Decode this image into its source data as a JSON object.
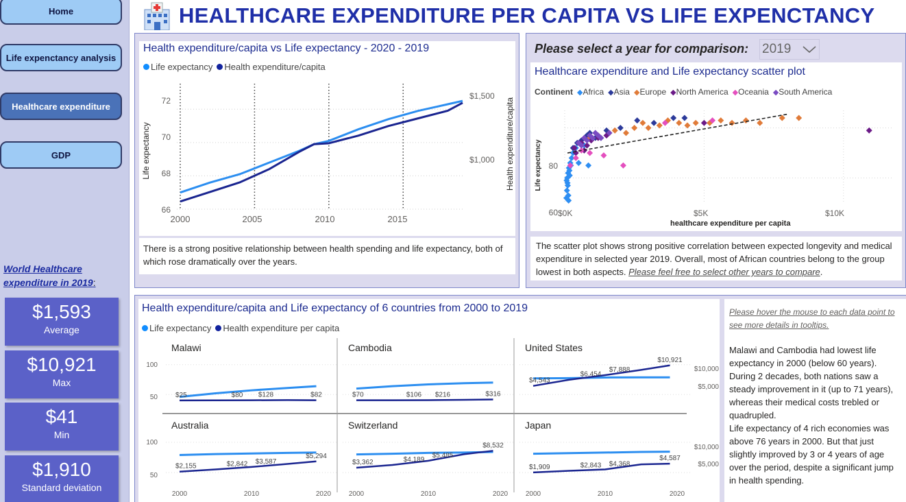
{
  "app_title": "HEALTHCARE EXPENDITURE PER CAPITA VS LIFE EXPENCTANCY",
  "colors": {
    "light_blue": "#118dff",
    "light_line": "#2c8ef0",
    "dark_line": "#12239e",
    "kpi_bg": "#5b61c8",
    "nav_active": "#4a72b8",
    "nav_bg": "#9ecbf5"
  },
  "nav": {
    "home": "Home",
    "life": "Life expenctancy analysis",
    "health": "Healthcare expenditure",
    "gdp": "GDP"
  },
  "world": {
    "title": "World Healthcare expenditure in 2019",
    "colon": ":"
  },
  "kpis": [
    {
      "value": "$1,593",
      "label": "Average"
    },
    {
      "value": "$10,921",
      "label": "Max"
    },
    {
      "value": "$41",
      "label": "Min"
    },
    {
      "value": "$1,910",
      "label": "Standard deviation"
    }
  ],
  "line_visual": {
    "title": "Health expenditure/capita vs Life expectancy - 2020 - 2019",
    "legend": [
      "Life expectancy",
      "Health expenditure/capita"
    ],
    "ylabel_left": "Life expectancy",
    "ylabel_right": "Health expenditure/capita",
    "y_ticks_left": [
      "72",
      "70",
      "68",
      "66"
    ],
    "y_ticks_right": [
      "$1,500",
      "$1,000"
    ],
    "x_ticks": [
      "2000",
      "2005",
      "2010",
      "2015"
    ],
    "note": "There is a strong positive relationship between health spending and life expectancy, both of which rose dramatically over the years."
  },
  "select": {
    "label": "Please select a year for comparison:",
    "value": "2019"
  },
  "scatter_visual": {
    "title": "Healthcare expenditure and Life expectancy scatter plot",
    "legend_label": "Continent",
    "legend": [
      {
        "name": "Africa",
        "color": "#2e8ef2"
      },
      {
        "name": "Asia",
        "color": "#2c3a9a"
      },
      {
        "name": "Europe",
        "color": "#e07b39"
      },
      {
        "name": "North America",
        "color": "#6b1a87"
      },
      {
        "name": "Oceania",
        "color": "#e44fbe"
      },
      {
        "name": "South America",
        "color": "#7a4bc2"
      }
    ],
    "ylabel": "Life expectancy",
    "xlabel": "healthcare expenditure per capita",
    "y_ticks": [
      "80",
      "60"
    ],
    "x_ticks": [
      "$0K",
      "$5K",
      "$10K"
    ],
    "note_plain": "The scatter plot shows strong positive correlation between expected longevity and medical expenditure in selected year 2019. Overall, most of African countries belong to the group lowest in both aspects. ",
    "note_italic": "Please feel free to select other years to compare",
    "note_end": "."
  },
  "small_multiples": {
    "title": "Health expenditure/capita and Life expectancy of 6 countries from 2000 to 2019",
    "legend": [
      "Life expectancy",
      "Health expenditure per capita"
    ],
    "y_left": [
      "100",
      "50"
    ],
    "y_right": [
      "$10,000",
      "$5,000"
    ],
    "x_ticks": [
      "2000",
      "2010",
      "2020"
    ],
    "countries": [
      {
        "name": "Malawi",
        "labels": [
          "$25",
          "$80",
          "$128",
          "$82"
        ]
      },
      {
        "name": "Cambodia",
        "labels": [
          "$70",
          "$106",
          "$216",
          "$316"
        ]
      },
      {
        "name": "United States",
        "labels": [
          "$4,543",
          "$6,454",
          "$7,888",
          "$10,921"
        ]
      },
      {
        "name": "Australia",
        "labels": [
          "$2,155",
          "$2,842",
          "$3,587",
          "$5,294"
        ]
      },
      {
        "name": "Switzerland",
        "labels": [
          "$3,362",
          "$4,189",
          "$5,485",
          "$8,532"
        ]
      },
      {
        "name": "Japan",
        "labels": [
          "$1,909",
          "$2,843",
          "$4,368",
          "$4,587"
        ]
      }
    ]
  },
  "side_note": {
    "hover": "Please hover the mouse to each data point to see more details in tooltips.",
    "p1": "Malawi and Cambodia had lowest life expectancy in 2000 (below 60 years). During 2 decades, both nations saw a steady improvement in it (up to 71 years), whereas their medical costs trebled or quadrupled.",
    "p2": "Life expectancy of 4 rich economies was above 76 years in 2000. But that just slightly improved by 3 or 4 years of age over the period, despite a significant jump in health spending."
  },
  "chart_data": [
    {
      "type": "line",
      "title": "Health expenditure/capita vs Life expectancy - 2020 - 2019",
      "x": [
        2000,
        2002,
        2004,
        2006,
        2008,
        2009,
        2010,
        2012,
        2014,
        2016,
        2018,
        2019
      ],
      "series": [
        {
          "name": "Life expectancy",
          "axis": "left",
          "values": [
            67.0,
            67.6,
            68.1,
            68.8,
            69.5,
            69.9,
            70.1,
            70.8,
            71.4,
            71.9,
            72.3,
            72.5
          ]
        },
        {
          "name": "Health expenditure/capita",
          "axis": "right",
          "values": [
            560,
            660,
            760,
            900,
            1080,
            1160,
            1170,
            1250,
            1350,
            1430,
            1510,
            1593
          ]
        }
      ],
      "ylim_left": [
        66,
        73
      ],
      "ylim_right": [
        480,
        1700
      ],
      "xlim": [
        2000,
        2019
      ]
    },
    {
      "type": "scatter",
      "title": "Healthcare expenditure and Life expectancy scatter plot",
      "xlim": [
        0,
        11800
      ],
      "ylim": [
        50,
        87
      ],
      "trend": [
        [
          100,
          70
        ],
        [
          8000,
          85.5
        ]
      ],
      "series": [
        {
          "name": "Africa",
          "points": [
            [
              80,
              55
            ],
            [
              100,
              58
            ],
            [
              120,
              62
            ],
            [
              60,
              52
            ],
            [
              150,
              64
            ],
            [
              200,
              66
            ],
            [
              90,
              60
            ],
            [
              130,
              53
            ],
            [
              110,
              57
            ],
            [
              170,
              63
            ],
            [
              250,
              68
            ],
            [
              300,
              70
            ],
            [
              400,
              72
            ],
            [
              500,
              66
            ],
            [
              700,
              73
            ],
            [
              850,
              65
            ],
            [
              140,
              51
            ],
            [
              70,
              59
            ],
            [
              180,
              61
            ],
            [
              220,
              65
            ]
          ]
        },
        {
          "name": "Asia",
          "points": [
            [
              300,
              72
            ],
            [
              600,
              75
            ],
            [
              1100,
              76
            ],
            [
              2000,
              80
            ],
            [
              3200,
              82
            ],
            [
              4300,
              84
            ],
            [
              900,
              78
            ],
            [
              450,
              74
            ],
            [
              1500,
              79
            ],
            [
              2600,
              83
            ],
            [
              800,
              77
            ],
            [
              1300,
              76
            ],
            [
              3900,
              84
            ]
          ]
        },
        {
          "name": "Europe",
          "points": [
            [
              1200,
              77
            ],
            [
              1800,
              79
            ],
            [
              2500,
              80
            ],
            [
              3400,
              81
            ],
            [
              4100,
              82
            ],
            [
              4700,
              82
            ],
            [
              5200,
              82
            ],
            [
              5600,
              83
            ],
            [
              6000,
              82
            ],
            [
              6500,
              83
            ],
            [
              7000,
              82
            ],
            [
              7800,
              84
            ],
            [
              8400,
              84
            ],
            [
              3000,
              80
            ],
            [
              2200,
              78
            ],
            [
              1600,
              78
            ],
            [
              900,
              76
            ],
            [
              2800,
              82
            ],
            [
              3700,
              83
            ],
            [
              4400,
              81
            ]
          ]
        },
        {
          "name": "North America",
          "points": [
            [
              400,
              70
            ],
            [
              800,
              73
            ],
            [
              1200,
              76
            ],
            [
              600,
              74
            ],
            [
              1500,
              77
            ],
            [
              5000,
              82
            ],
            [
              10921,
              79
            ],
            [
              350,
              72
            ],
            [
              950,
              75
            ],
            [
              700,
              71
            ]
          ]
        },
        {
          "name": "Oceania",
          "points": [
            [
              200,
              65
            ],
            [
              400,
              68
            ],
            [
              900,
              70
            ],
            [
              3600,
              82
            ],
            [
              5300,
              83
            ],
            [
              2100,
              65
            ],
            [
              1400,
              69
            ],
            [
              600,
              71
            ]
          ]
        },
        {
          "name": "South America",
          "points": [
            [
              500,
              74
            ],
            [
              700,
              76
            ],
            [
              900,
              77
            ],
            [
              1100,
              78
            ],
            [
              1300,
              76
            ],
            [
              800,
              75
            ],
            [
              600,
              73
            ],
            [
              1000,
              76
            ],
            [
              1200,
              77
            ],
            [
              1600,
              78
            ]
          ]
        }
      ]
    },
    {
      "type": "line",
      "title": "Health expenditure/capita and Life expectancy of 6 countries from 2000 to 2019",
      "x": [
        2000,
        2005,
        2010,
        2015,
        2019
      ],
      "ylim_left": [
        40,
        110
      ],
      "ylim_right": [
        0,
        13000
      ],
      "panels": [
        {
          "country": "Malawi",
          "life": [
            46,
            52,
            57,
            61,
            64
          ],
          "spend": [
            25,
            50,
            80,
            128,
            82
          ]
        },
        {
          "country": "Cambodia",
          "life": [
            60,
            64,
            67,
            69,
            70
          ],
          "spend": [
            70,
            90,
            106,
            216,
            316
          ]
        },
        {
          "country": "United States",
          "life": [
            77,
            77.5,
            78.5,
            78.8,
            78.8
          ],
          "spend": [
            4543,
            6454,
            7888,
            9500,
            10921
          ]
        },
        {
          "country": "Australia",
          "life": [
            79,
            80.5,
            81.5,
            82.5,
            83
          ],
          "spend": [
            2155,
            2842,
            3587,
            4500,
            5294
          ]
        },
        {
          "country": "Switzerland",
          "life": [
            80,
            81,
            82.5,
            83,
            84
          ],
          "spend": [
            3362,
            4189,
            5485,
            7500,
            8532
          ]
        },
        {
          "country": "Japan",
          "life": [
            81,
            82,
            83,
            84,
            84.5
          ],
          "spend": [
            1909,
            2400,
            2843,
            4368,
            4587
          ]
        }
      ]
    }
  ]
}
